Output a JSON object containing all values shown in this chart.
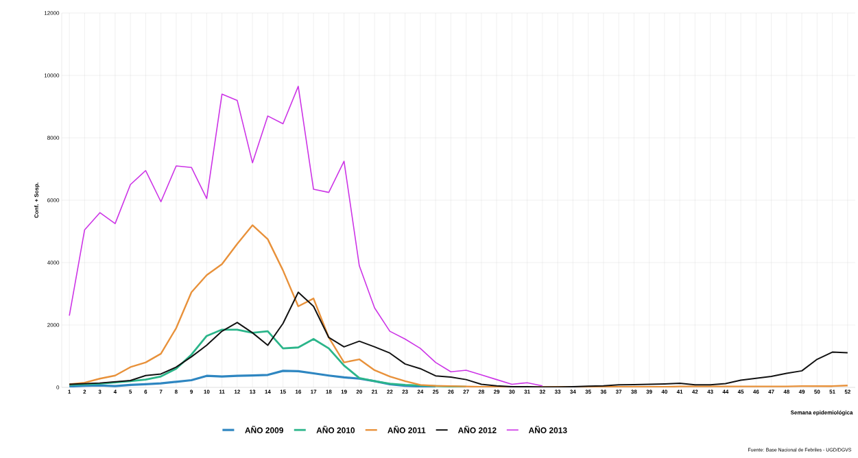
{
  "chart_data": {
    "type": "line",
    "ylabel": "Conf. + Sosp.",
    "xlabel": "Semana epidemiológica",
    "annotations": [
      "Fuente: Base Nacional de Febriles - UGD/DGVS"
    ],
    "categories": [
      "1",
      "2",
      "3",
      "4",
      "5",
      "6",
      "7",
      "8",
      "9",
      "10",
      "11",
      "12",
      "13",
      "14",
      "15",
      "16",
      "17",
      "18",
      "19",
      "20",
      "21",
      "22",
      "23",
      "24",
      "25",
      "26",
      "27",
      "28",
      "29",
      "30",
      "31",
      "32",
      "33",
      "34",
      "35",
      "36",
      "37",
      "38",
      "39",
      "40",
      "41",
      "42",
      "43",
      "44",
      "45",
      "46",
      "47",
      "48",
      "49",
      "50",
      "51",
      "52"
    ],
    "ylim": [
      0,
      12000
    ],
    "yticks": [
      0,
      2000,
      4000,
      6000,
      8000,
      10000,
      12000
    ],
    "grid": true,
    "legend": "bottom",
    "series": [
      {
        "name": "AÑO 2009",
        "color": "#2e86c1",
        "values": [
          30,
          50,
          60,
          40,
          80,
          100,
          130,
          180,
          230,
          370,
          350,
          370,
          380,
          400,
          530,
          520,
          450,
          380,
          320,
          280,
          200,
          100,
          50,
          30,
          20,
          null,
          null,
          null,
          null,
          null,
          null,
          null,
          null,
          null,
          null,
          null,
          null,
          null,
          null,
          null,
          null,
          null,
          null,
          null,
          null,
          null,
          null,
          null,
          null,
          null,
          null,
          null
        ]
      },
      {
        "name": "AÑO 2010",
        "color": "#2bb58a",
        "values": [
          80,
          100,
          120,
          160,
          200,
          250,
          350,
          600,
          1050,
          1650,
          1850,
          1850,
          1750,
          1800,
          1250,
          1280,
          1550,
          1250,
          700,
          300,
          200,
          120,
          80,
          60,
          40,
          30,
          20,
          null,
          null,
          null,
          null,
          null,
          null,
          null,
          null,
          null,
          null,
          null,
          null,
          null,
          null,
          null,
          null,
          null,
          null,
          null,
          null,
          null,
          null,
          null,
          null,
          null
        ]
      },
      {
        "name": "AÑO 2011",
        "color": "#e8913a",
        "values": [
          100,
          150,
          280,
          380,
          650,
          800,
          1080,
          1900,
          3050,
          3600,
          3950,
          4600,
          5200,
          4750,
          3750,
          2600,
          2850,
          1600,
          800,
          900,
          550,
          350,
          200,
          80,
          50,
          40,
          30,
          20,
          20,
          10,
          10,
          10,
          20,
          20,
          20,
          20,
          20,
          20,
          20,
          20,
          30,
          30,
          30,
          30,
          30,
          30,
          30,
          30,
          40,
          40,
          40,
          60
        ]
      },
      {
        "name": "AÑO 2012",
        "color": "#111111",
        "values": [
          100,
          120,
          140,
          180,
          220,
          380,
          430,
          650,
          980,
          1350,
          1800,
          2080,
          1750,
          1350,
          2050,
          3050,
          2600,
          1600,
          1300,
          1480,
          1300,
          1100,
          750,
          600,
          370,
          330,
          250,
          100,
          50,
          20,
          20,
          10,
          10,
          20,
          40,
          50,
          80,
          90,
          100,
          110,
          130,
          80,
          80,
          120,
          230,
          290,
          350,
          450,
          530,
          900,
          1130,
          1110
        ]
      },
      {
        "name": "AÑO 2013",
        "color": "#cc33e6",
        "values": [
          2300,
          5050,
          5600,
          5250,
          6500,
          6950,
          5950,
          7100,
          7050,
          6050,
          9400,
          9200,
          7200,
          8700,
          8450,
          9650,
          6350,
          6250,
          7250,
          3900,
          2550,
          1800,
          1550,
          1250,
          800,
          500,
          550,
          400,
          250,
          100,
          150,
          50,
          null,
          null,
          null,
          null,
          null,
          null,
          null,
          null,
          null,
          null,
          null,
          null,
          null,
          null,
          null,
          null,
          null,
          null,
          null,
          null
        ]
      }
    ]
  }
}
